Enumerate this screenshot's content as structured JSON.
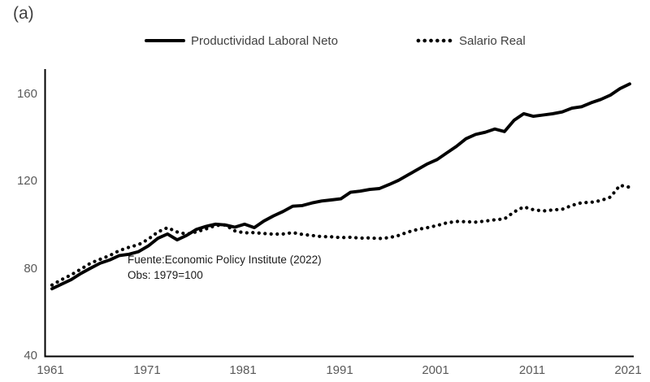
{
  "panel_label": "(a)",
  "colors": {
    "line": "#000000",
    "axis": "#000000",
    "tick_label": "#595959",
    "legend_text": "#404040",
    "background": "#ffffff"
  },
  "legend": [
    {
      "label": "Productividad Laboral Neto",
      "style": "solid"
    },
    {
      "label": "Salario Real",
      "style": "dotted"
    }
  ],
  "annotation": {
    "line1": "Fuente:Economic Policy Institute (2022)",
    "line2": "Obs: 1979=100"
  },
  "chart_data": {
    "type": "line",
    "title": "",
    "xlabel": "",
    "ylabel": "",
    "grid": false,
    "legend_position": "top",
    "x_ticks": [
      1961,
      1971,
      1981,
      1991,
      2001,
      2011,
      2021
    ],
    "y_ticks": [
      40,
      80,
      120,
      160
    ],
    "xlim": [
      1960.3,
      2021.5
    ],
    "ylim": [
      40,
      171.5
    ],
    "index_base": "1979=100",
    "x": [
      1961,
      1962,
      1963,
      1964,
      1965,
      1966,
      1967,
      1968,
      1969,
      1970,
      1971,
      1972,
      1973,
      1974,
      1975,
      1976,
      1977,
      1978,
      1979,
      1980,
      1981,
      1982,
      1983,
      1984,
      1985,
      1986,
      1987,
      1988,
      1989,
      1990,
      1991,
      1992,
      1993,
      1994,
      1995,
      1996,
      1997,
      1998,
      1999,
      2000,
      2001,
      2002,
      2003,
      2004,
      2005,
      2006,
      2007,
      2008,
      2009,
      2010,
      2011,
      2012,
      2013,
      2014,
      2015,
      2016,
      2017,
      2018,
      2019,
      2020,
      2021
    ],
    "series": [
      {
        "name": "Productividad Laboral Neto",
        "style": "solid",
        "values": [
          70.8,
          72.9,
          75.0,
          77.8,
          80.2,
          82.5,
          84.0,
          86.0,
          86.6,
          87.8,
          90.4,
          93.9,
          95.9,
          93.2,
          95.3,
          98.0,
          99.4,
          100.4,
          100.0,
          99.0,
          100.4,
          98.8,
          101.8,
          104.2,
          106.2,
          108.6,
          108.9,
          110.1,
          111.0,
          111.5,
          112.0,
          115.0,
          115.5,
          116.3,
          116.7,
          118.5,
          120.5,
          123.0,
          125.5,
          128.0,
          130.0,
          133.0,
          136.0,
          139.5,
          141.5,
          142.5,
          144.0,
          142.8,
          148.0,
          151.0,
          149.8,
          150.4,
          151.0,
          151.8,
          153.5,
          154.2,
          156.0,
          157.5,
          159.5,
          162.5,
          164.6
        ]
      },
      {
        "name": "Salario Real",
        "style": "dotted",
        "values": [
          72.5,
          75.0,
          77.2,
          79.8,
          82.5,
          84.3,
          86.0,
          88.3,
          89.8,
          91.0,
          93.5,
          96.8,
          98.8,
          96.8,
          95.8,
          96.9,
          98.2,
          99.8,
          100.0,
          97.3,
          96.4,
          96.5,
          96.1,
          95.8,
          95.9,
          96.5,
          95.7,
          95.2,
          94.7,
          94.6,
          94.2,
          94.4,
          94.0,
          94.1,
          93.8,
          94.2,
          95.2,
          96.8,
          98.0,
          98.8,
          99.8,
          101.0,
          101.6,
          101.5,
          101.3,
          101.8,
          102.4,
          102.8,
          106.0,
          108.3,
          107.0,
          106.4,
          106.9,
          107.2,
          109.0,
          110.2,
          110.4,
          111.2,
          112.8,
          118.2,
          117.3
        ]
      }
    ]
  }
}
